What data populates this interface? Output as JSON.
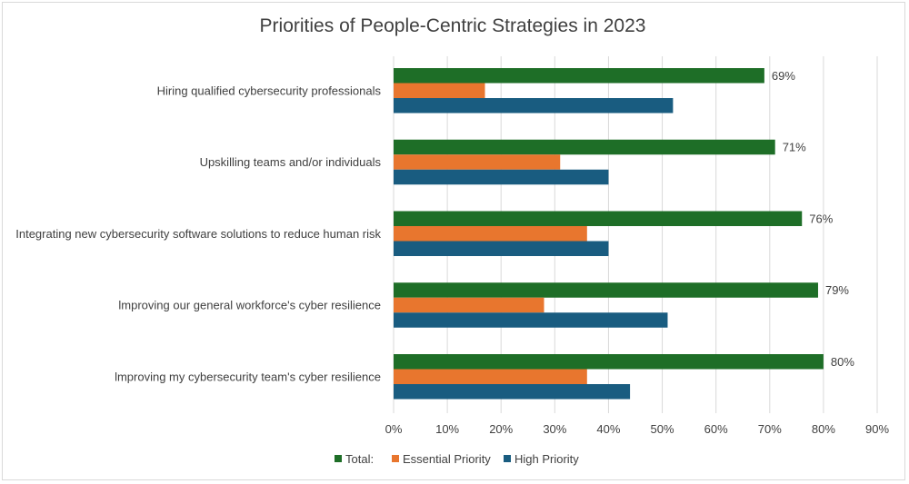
{
  "chart_data": {
    "type": "bar",
    "orientation": "horizontal",
    "title": "Priorities of People-Centric Strategies in 2023",
    "categories": [
      "Hiring qualified cybersecurity professionals",
      "Upskilling teams and/or individuals",
      "Integrating new cybersecurity software solutions to reduce human risk",
      "lmproving our general workforce's cyber resilience",
      "lmproving my cybersecurity team's cyber resilience"
    ],
    "series": [
      {
        "name": "Total:",
        "color": "#1e6e27",
        "values": [
          69,
          71,
          76,
          79,
          80
        ],
        "data_labels": [
          "69%",
          "71%",
          "76%",
          "79%",
          "80%"
        ]
      },
      {
        "name": "Essential Priority",
        "color": "#e8762e",
        "values": [
          17,
          31,
          36,
          28,
          36
        ]
      },
      {
        "name": "High Priority",
        "color": "#195c80",
        "values": [
          52,
          40,
          40,
          51,
          44
        ]
      }
    ],
    "xlim": [
      0,
      90
    ],
    "xticks": [
      "0%",
      "10%",
      "20%",
      "30%",
      "40%",
      "50%",
      "60%",
      "70%",
      "80%",
      "90%"
    ],
    "grid": true,
    "legend_position": "bottom"
  }
}
